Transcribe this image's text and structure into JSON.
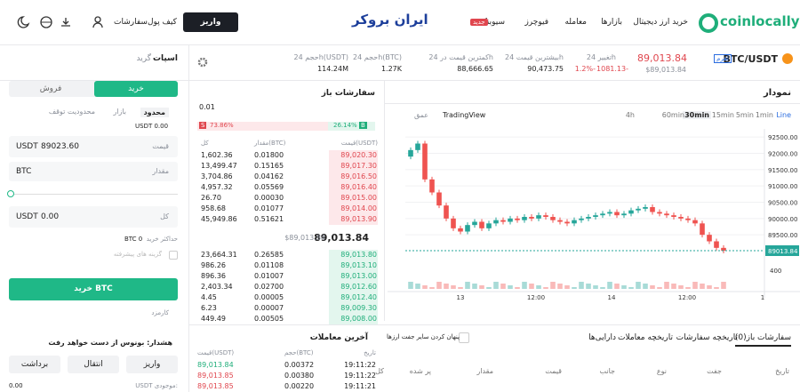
{
  "nav": {
    "brand": "coinlocally",
    "links": [
      "خرید ارز دیجیتال",
      "بازارها",
      "معامله",
      "فیوچرز",
      "سیوبنک"
    ],
    "new_badge": "جدید",
    "center_logo": "ایران بروکر",
    "deposit": "واریز",
    "wallet": "کیف پول",
    "orders": "سفارشات"
  },
  "ticker": {
    "pair": "BTC/USDT",
    "badge": "اهرم",
    "last_price": "89,013.84",
    "last_price_usd": "$89,013.84",
    "change_label": "تغییر 24h",
    "change_value": "1081.13-",
    "change_percent": "1.2%-",
    "high_label": "بیشترین قیمت 24h",
    "high_value": "90,473.75",
    "low_label": "کمترین قیمت در 24h",
    "low_value": "88,666.65",
    "vol_btc_label": "حجم 24h(BTC)",
    "vol_btc_value": "1.27K",
    "vol_usdt_label": "حجم 24h(USDT)",
    "vol_usdt_value": "114.24M"
  },
  "chart_panel": {
    "title": "نمودار",
    "timeframes": [
      "Line",
      "1min",
      "5min",
      "15min",
      "30min",
      "60min",
      "4h"
    ],
    "active_timeframe": 4,
    "tradingview": "TradingView",
    "depth": "عمق"
  },
  "price_chart": {
    "type": "candlestick",
    "ylim": [
      88250,
      92750
    ],
    "yticks": [
      {
        "value": 92500,
        "label": "92500.00"
      },
      {
        "value": 92000,
        "label": "92000.00"
      },
      {
        "value": 91500,
        "label": "91500.00"
      },
      {
        "value": 91000,
        "label": "91000.00"
      },
      {
        "value": 90500,
        "label": "90500.00"
      },
      {
        "value": 90000,
        "label": "90000.00"
      },
      {
        "value": 89500,
        "label": "89500.00"
      }
    ],
    "last": {
      "value": 89013.84,
      "label": "89013.84"
    },
    "volume_tick": "400",
    "xticks": [
      "13",
      "12:00",
      "14",
      "12:00",
      "1"
    ],
    "up_color": "#26a69a",
    "down_color": "#ef5350",
    "open": [
      91900,
      92100,
      92300,
      91200,
      90800,
      90400,
      90000,
      89700,
      89600,
      89800,
      89900,
      89700,
      89850,
      89950,
      89900,
      90000,
      89950,
      90050,
      90000,
      90100,
      90050,
      89950,
      89900,
      89850,
      89950,
      90000,
      90050,
      90100,
      90150,
      90200,
      90100,
      90150,
      90250,
      90300,
      90350,
      90200,
      90150,
      90100,
      90050,
      90000,
      89950,
      89850,
      89500,
      89300,
      89100
    ],
    "close": [
      92100,
      92300,
      91200,
      90800,
      90400,
      90000,
      89700,
      89600,
      89800,
      89900,
      89700,
      89850,
      89950,
      89900,
      90000,
      89950,
      90050,
      90000,
      90100,
      90050,
      89950,
      89900,
      89850,
      89950,
      90000,
      90050,
      90100,
      90150,
      90200,
      90100,
      90150,
      90250,
      90300,
      90350,
      90200,
      90150,
      90100,
      90050,
      90000,
      89950,
      89850,
      89500,
      89300,
      89100,
      89013.84
    ]
  },
  "order_book": {
    "title": "سفارشات باز",
    "precision": "0.01",
    "buy_letter": "B",
    "buy_ratio": "26.14%",
    "sell_letter": "S",
    "sell_ratio": "73.86%",
    "columns": [
      "قیمت(USDT)",
      "مقدار(BTC)",
      "کل"
    ],
    "asks": [
      [
        "89,020.30",
        "0.01800",
        "1,602.36"
      ],
      [
        "89,017.30",
        "0.15165",
        "13,499.47"
      ],
      [
        "89,016.50",
        "0.04162",
        "3,704.86"
      ],
      [
        "89,016.40",
        "0.05569",
        "4,957.32"
      ],
      [
        "89,015.00",
        "0.00030",
        "26.70"
      ],
      [
        "89,014.00",
        "0.01077",
        "958.68"
      ],
      [
        "89,013.90",
        "0.51621",
        "45,949.86"
      ]
    ],
    "mid_price": "89,013.84",
    "mid_price_usd": "$89,013.84",
    "bids": [
      [
        "89,013.80",
        "0.26585",
        "23,664.31"
      ],
      [
        "89,013.10",
        "0.01108",
        "986.26"
      ],
      [
        "89,013.00",
        "0.01007",
        "896.36"
      ],
      [
        "89,012.60",
        "0.02700",
        "2,403.34"
      ],
      [
        "89,012.40",
        "0.00005",
        "4.45"
      ],
      [
        "89,009.30",
        "0.00007",
        "6.23"
      ],
      [
        "89,008.00",
        "0.00505",
        "449.49"
      ]
    ]
  },
  "recent_trades": {
    "title": "آخرین معاملات",
    "columns": [
      "تاریخ",
      "حجم(BTC)",
      "قیمت(USDT)"
    ],
    "rows": [
      [
        "19:11:22",
        "0.00372",
        "89,013.84"
      ],
      [
        "19:11:22",
        "0.00380",
        "89,013.85"
      ],
      [
        "19:11:21",
        "0.00220",
        "89,013.85"
      ]
    ]
  },
  "orders_panel": {
    "tabs": [
      "سفارشات باز(0)",
      "تاریخچه سفارشات",
      "تاریخچه معاملات",
      "دارایی‌ها"
    ],
    "hide_others": "پنهان کردن سایر جفت ارزها",
    "columns": [
      "تاریخ",
      "جفت",
      "نوع",
      "جانب",
      "قیمت",
      "مقدار",
      "پر شده",
      "کل"
    ]
  },
  "trade_form": {
    "tabs": [
      "اسپات",
      "گرید"
    ],
    "buy_tab": "خرید",
    "sell_tab": "فروش",
    "order_types": [
      "محدود",
      "بازار",
      "محدودیت توقف"
    ],
    "available": "USDT 0.00",
    "price_label": "قیمت",
    "price_value": "89023.60",
    "price_unit": "USDT",
    "amount_label": "مقدار",
    "amount_unit": "BTC",
    "total_label": "کل",
    "total_value": "0.00",
    "total_unit": "USDT",
    "max_buy_label": "حداکثر خرید",
    "max_buy_value": "BTC 0",
    "advanced": "گزینه های پیشرفته",
    "submit": "خرید BTC",
    "fee": "کارمزد",
    "warning": "هشدار: بونوس از دست خواهد رفت",
    "actions": [
      "واریز",
      "انتقال",
      "برداشت"
    ],
    "balance_label": "USDT موجودی:",
    "balance_value": "0.00"
  }
}
